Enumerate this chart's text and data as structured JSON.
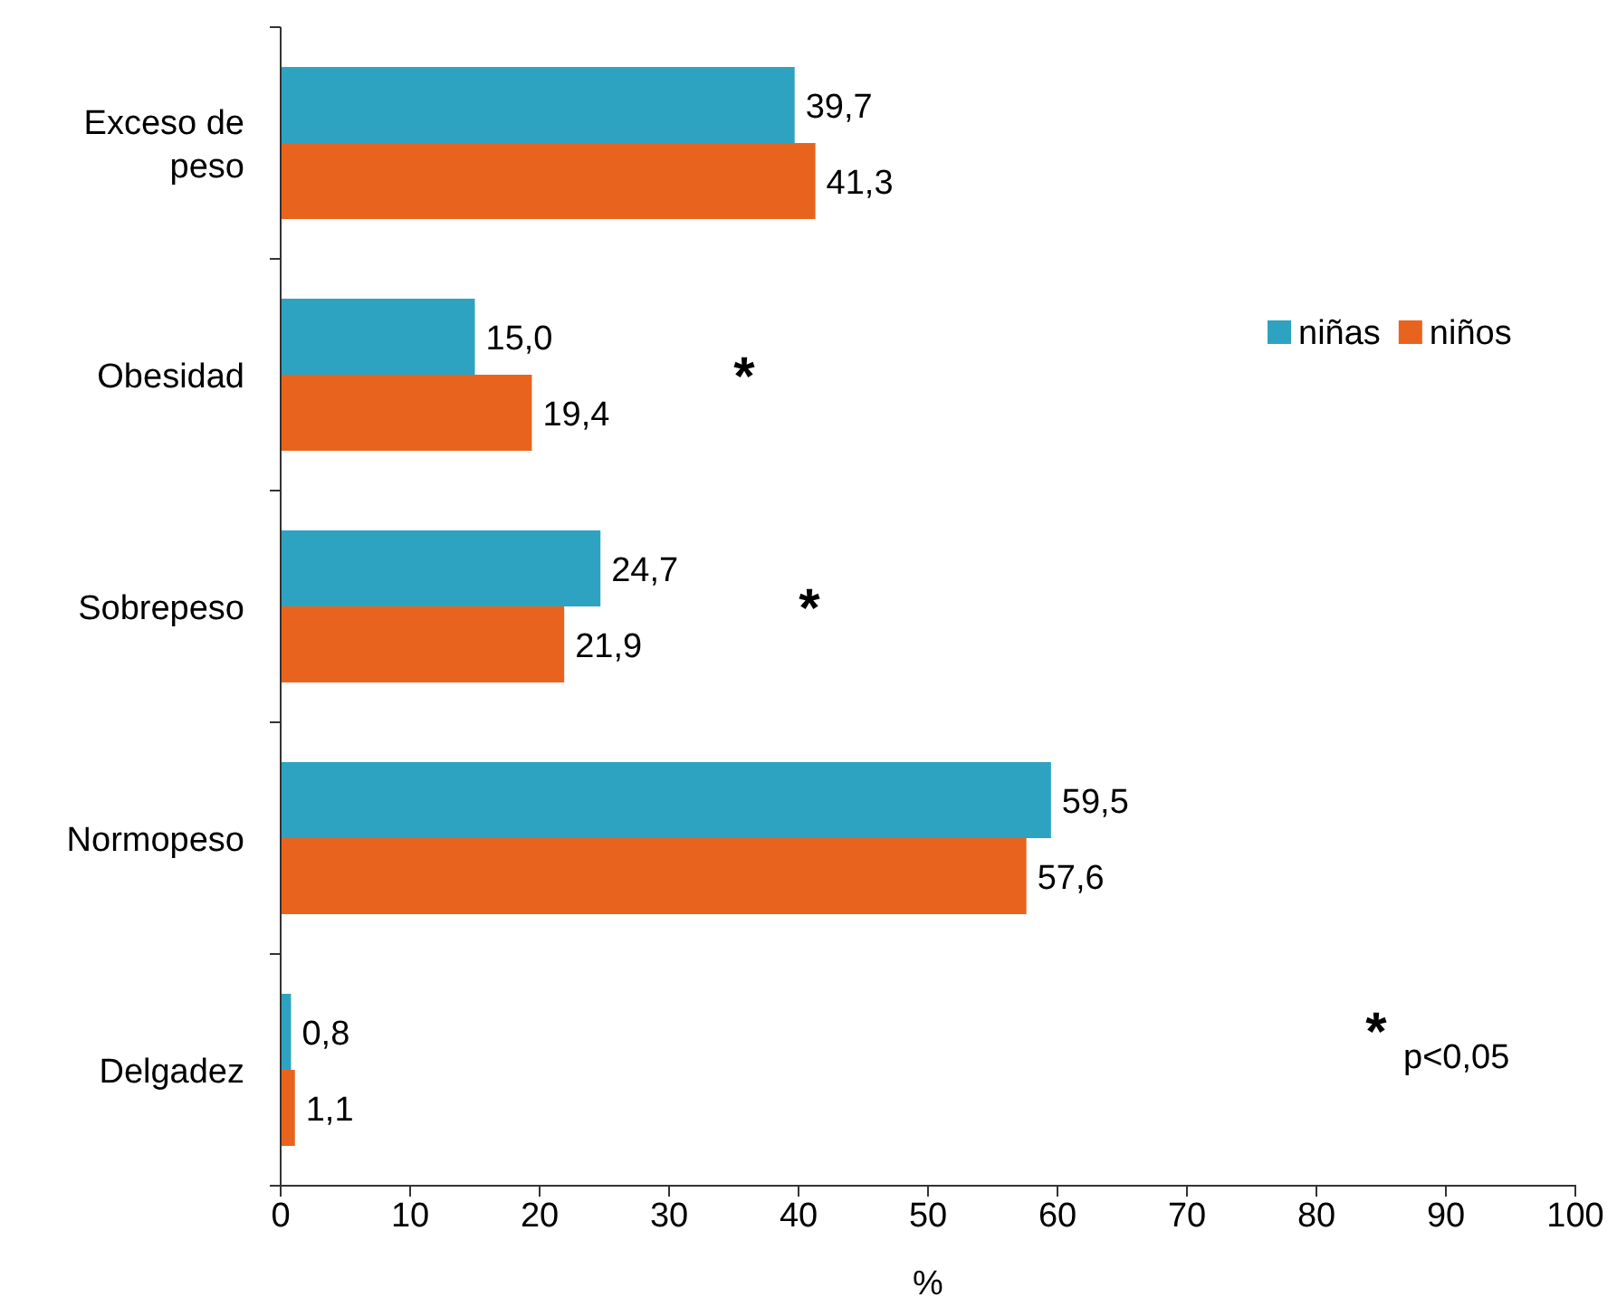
{
  "chart_data": {
    "type": "bar",
    "orientation": "horizontal",
    "xlabel": "%",
    "categories": [
      "Exceso de peso",
      "Obesidad",
      "Sobrepeso",
      "Normopeso",
      "Delgadez"
    ],
    "series": [
      {
        "name": "niñas",
        "color": "#2ea3c1",
        "values": [
          39.7,
          15.0,
          24.7,
          59.5,
          0.8
        ],
        "value_labels": [
          "39,7",
          "15,0",
          "24,7",
          "59,5",
          "0,8"
        ]
      },
      {
        "name": "niños",
        "color": "#e8641e",
        "values": [
          41.3,
          19.4,
          21.9,
          57.6,
          1.1
        ],
        "value_labels": [
          "41,3",
          "19,4",
          "21,9",
          "57,6",
          "1,1"
        ]
      }
    ],
    "xlim": [
      0,
      100
    ],
    "xticks": [
      0,
      10,
      20,
      30,
      40,
      50,
      60,
      70,
      80,
      90,
      100
    ],
    "legend": "top right",
    "grid": false,
    "annotations": [
      "*",
      "*",
      "*",
      "p<0,05"
    ]
  }
}
